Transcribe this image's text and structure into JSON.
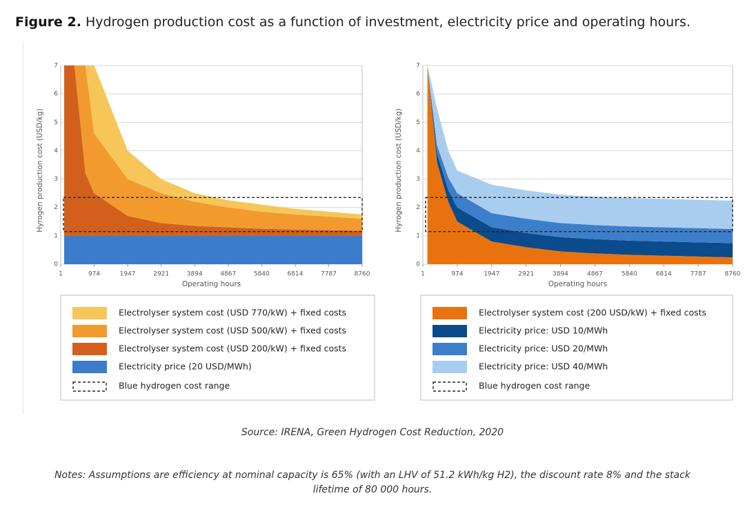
{
  "figure_label": "Figure 2.",
  "title": "Hydrogen production cost as a function of investment, electricity price and operating hours.",
  "source": "Source: IRENA, Green Hydrogen Cost Reduction, 2020",
  "notes": [
    "Notes: Assumptions are efficiency at nominal capacity is 65% (with an LHV of 51.2 kWh/kg H2), the discount rate 8% and the stack",
    "lifetime of 80 000 hours."
  ],
  "chart_data": [
    {
      "type": "stacked_area",
      "ylabel": "Hyrogen production cost (USD/kg)",
      "xlabel": "Operating hours",
      "xlim": [
        1,
        8760
      ],
      "xticks": [
        1,
        974,
        1947,
        2921,
        3894,
        4867,
        5840,
        6814,
        7787,
        8760
      ],
      "ylim": [
        0,
        7
      ],
      "yticks": [
        0,
        1,
        2,
        3,
        4,
        5,
        6,
        7
      ],
      "grid": true,
      "x": [
        100,
        400,
        720,
        974,
        1947,
        2921,
        3894,
        4867,
        5840,
        6814,
        7787,
        8760
      ],
      "series": [
        {
          "name": "Electrolyser system cost (USD 770/kW) + fixed costs",
          "color": "#f6c659",
          "values": [
            0,
            0,
            0,
            2.4,
            1.0,
            0.5,
            0.3,
            0.25,
            0.25,
            0.2,
            0.17,
            0.15
          ]
        },
        {
          "name": "Electrolyser system cost (USD 500/kW) + fixed costs",
          "color": "#f39a2f",
          "values": [
            0,
            0,
            3.8,
            2.1,
            1.3,
            1.05,
            0.85,
            0.7,
            0.6,
            0.53,
            0.48,
            0.42
          ]
        },
        {
          "name": "Electrolyser system cost (USD 200/kW) + fixed costs",
          "color": "#d2601c",
          "values": [
            6,
            6,
            2.2,
            1.5,
            0.7,
            0.45,
            0.35,
            0.3,
            0.25,
            0.22,
            0.2,
            0.18
          ]
        },
        {
          "name": "Electricity price (20 USD/MWh)",
          "color": "#3b7dcb",
          "values": [
            1,
            1,
            1,
            1,
            1,
            1,
            1,
            1,
            1,
            1,
            1,
            1
          ]
        }
      ],
      "range_label": "Blue hydrogen cost range",
      "range": [
        1.15,
        2.35
      ]
    },
    {
      "type": "stacked_area",
      "ylabel": "Hyrogen production cost (USD/kg)",
      "xlabel": "Operating hours",
      "xlim": [
        1,
        8760
      ],
      "xticks": [
        1,
        974,
        1947,
        2921,
        3894,
        4867,
        5840,
        6814,
        7787,
        8760
      ],
      "ylim": [
        0,
        7
      ],
      "yticks": [
        0,
        1,
        2,
        3,
        4,
        5,
        6,
        7
      ],
      "grid": true,
      "x": [
        130,
        400,
        720,
        974,
        1947,
        2921,
        3894,
        4867,
        5840,
        6814,
        7787,
        8760
      ],
      "series": [
        {
          "name": "Electrolyser system cost (200 USD/kW) + fixed costs",
          "color": "#e8730e",
          "values": [
            7,
            3.6,
            2.2,
            1.5,
            0.8,
            0.6,
            0.45,
            0.38,
            0.33,
            0.3,
            0.27,
            0.24
          ]
        },
        {
          "name": "Electricity price: USD 10/MWh",
          "color": "#0b4a8b",
          "values": [
            0,
            0.3,
            0.4,
            0.5,
            0.5,
            0.5,
            0.5,
            0.5,
            0.5,
            0.5,
            0.5,
            0.5
          ]
        },
        {
          "name": "Electricity price: USD 20/MWh",
          "color": "#3c7ec9",
          "values": [
            0,
            0.3,
            0.45,
            0.5,
            0.5,
            0.5,
            0.5,
            0.5,
            0.5,
            0.5,
            0.5,
            0.5
          ]
        },
        {
          "name": "Electricity price: USD 40/MWh",
          "color": "#a9cdef",
          "values": [
            0,
            1.3,
            0.95,
            0.8,
            1.0,
            1.0,
            1.0,
            1.0,
            1.0,
            1.0,
            1.0,
            1.0
          ]
        }
      ],
      "stack": "first-bottom",
      "range_label": "Blue hydrogen cost range",
      "range": [
        1.15,
        2.35
      ]
    }
  ]
}
